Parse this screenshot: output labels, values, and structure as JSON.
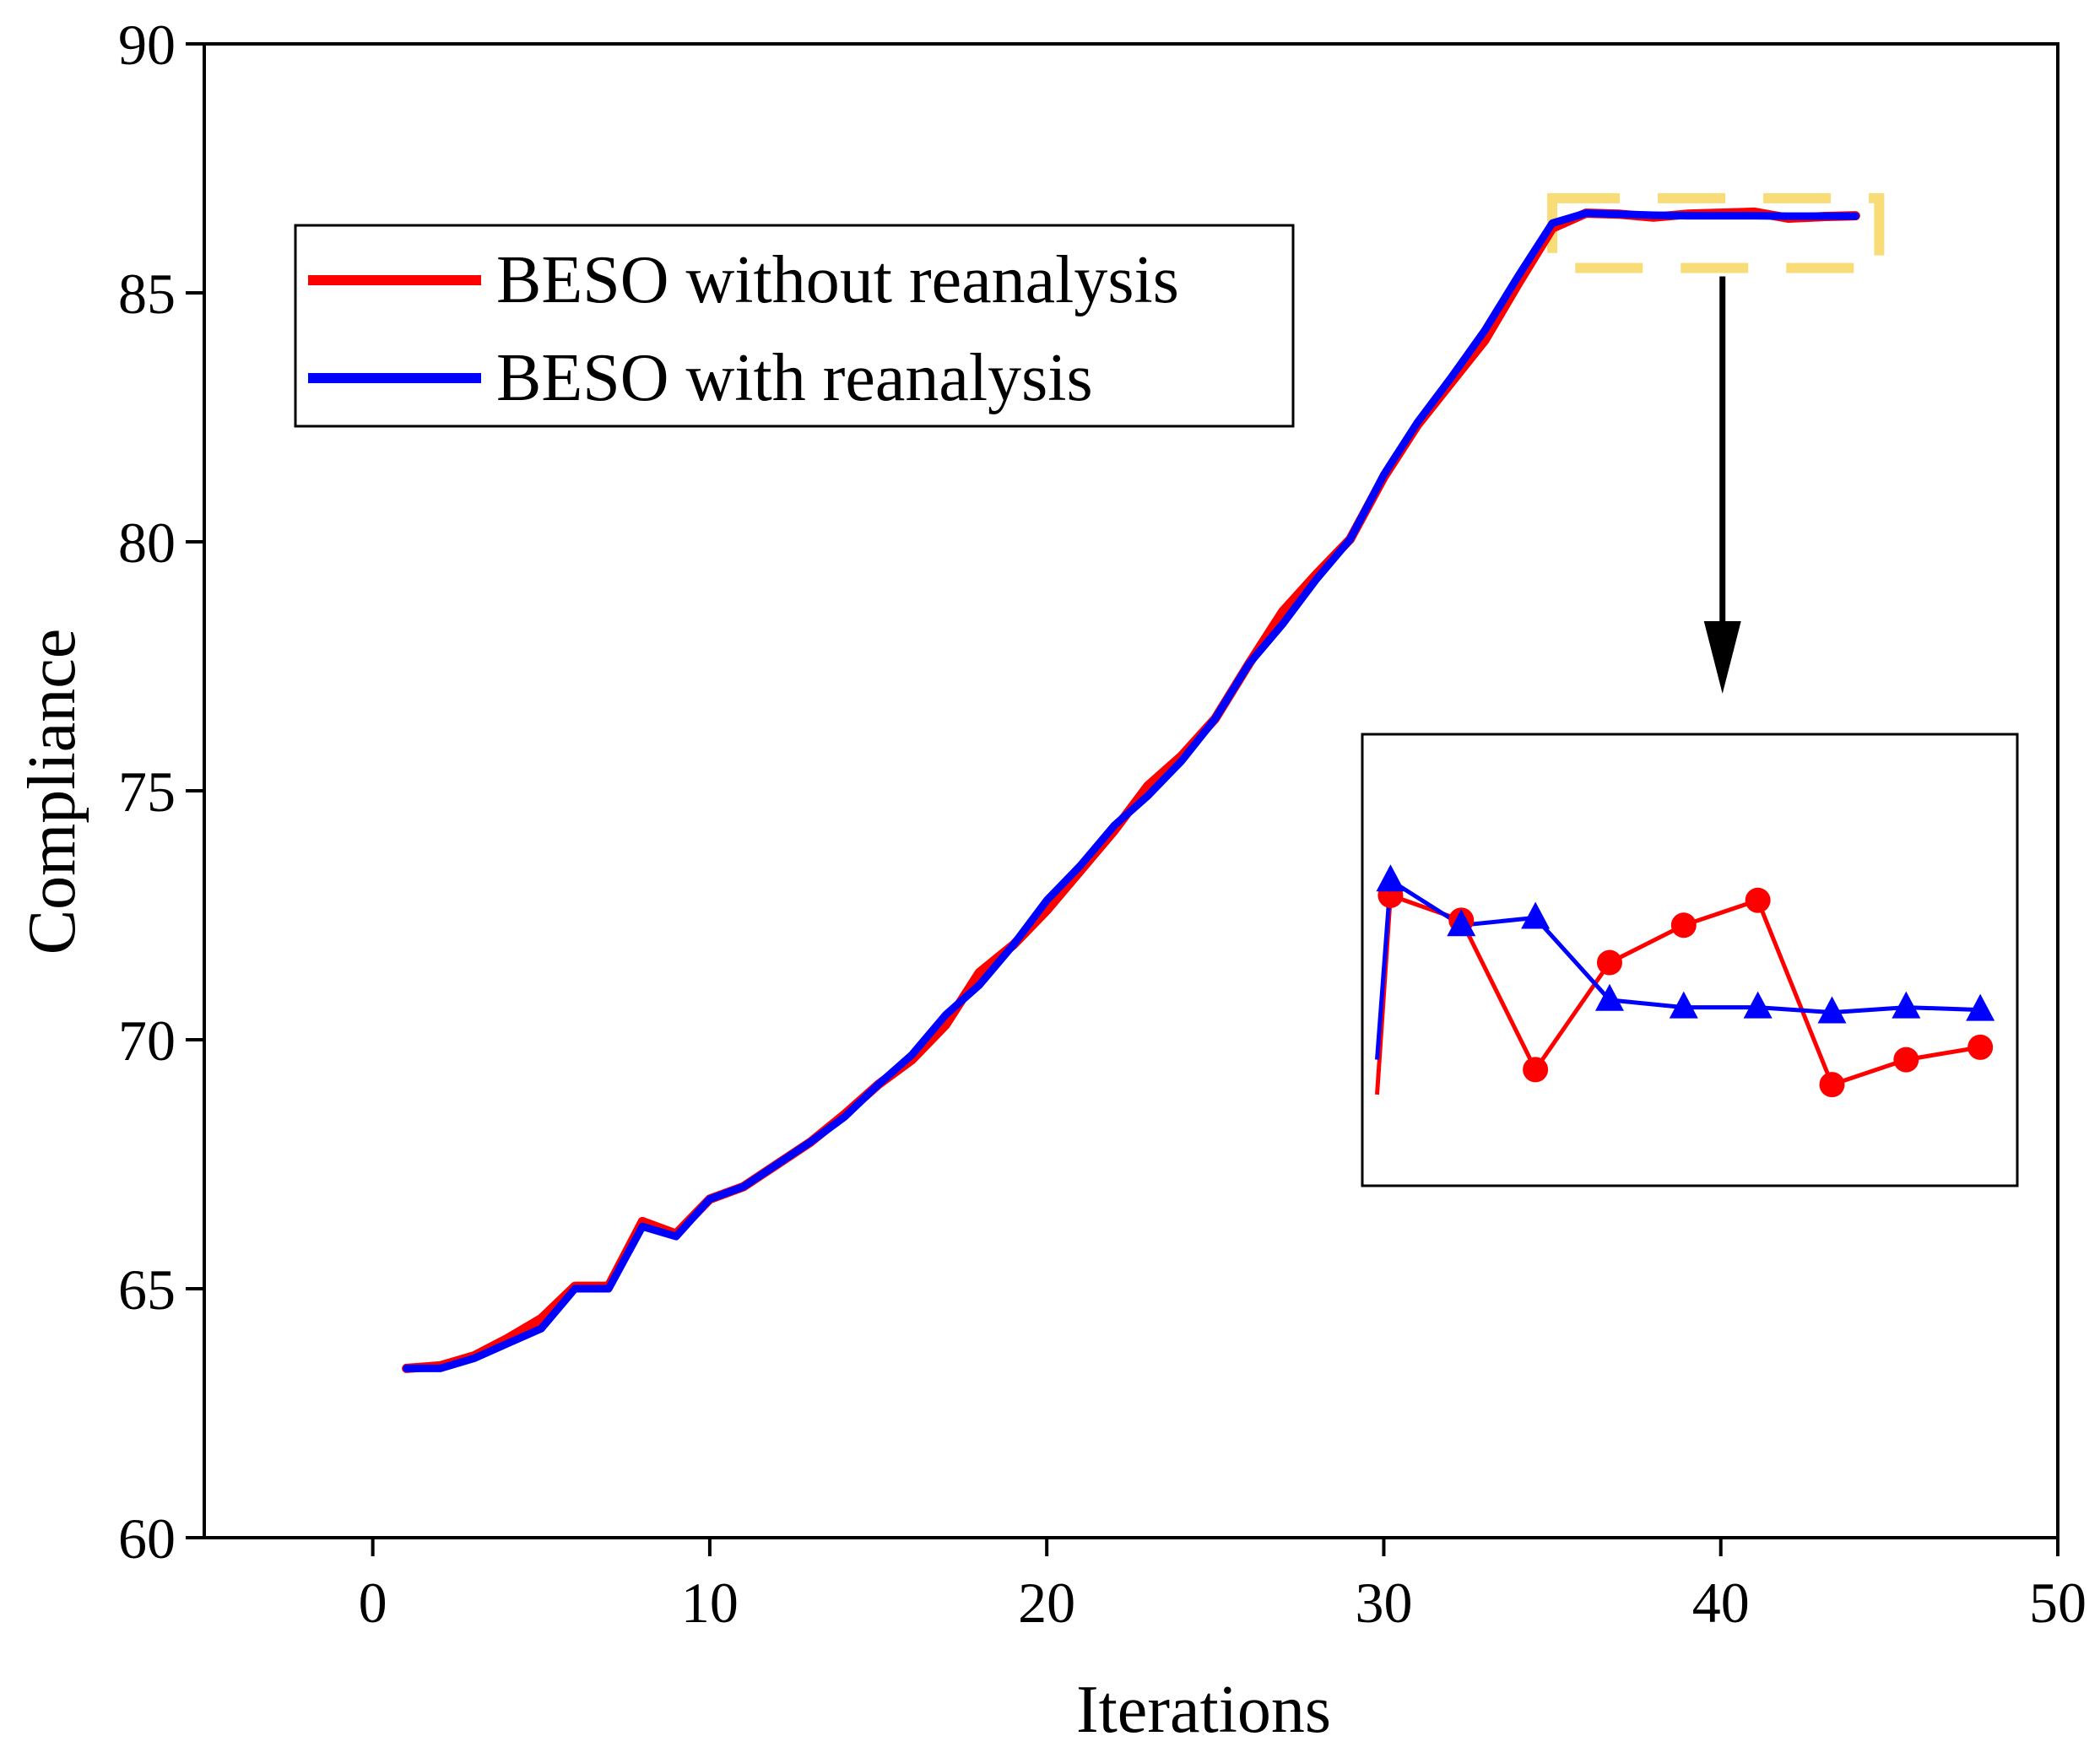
{
  "chart_data": {
    "type": "line",
    "title": "",
    "xlabel": "Iterations",
    "ylabel": "Compliance",
    "xlim": [
      -5,
      50
    ],
    "ylim": [
      60,
      90
    ],
    "xticks": [
      0,
      10,
      20,
      30,
      40,
      50
    ],
    "yticks": [
      60,
      65,
      70,
      75,
      80,
      85,
      90
    ],
    "grid": false,
    "legend_position": "upper-left",
    "series": [
      {
        "name": "BESO without reanalysis",
        "color": "#ff0000",
        "x": [
          1,
          2,
          3,
          4,
          5,
          6,
          7,
          8,
          9,
          10,
          11,
          12,
          13,
          14,
          15,
          16,
          17,
          18,
          19,
          20,
          21,
          22,
          23,
          24,
          25,
          26,
          27,
          28,
          29,
          30,
          31,
          32,
          33,
          34,
          35,
          36,
          37,
          38,
          39,
          40,
          41,
          42,
          43,
          44
        ],
        "y": [
          63.4,
          63.45,
          63.65,
          64.0,
          64.4,
          65.05,
          65.05,
          66.35,
          66.1,
          66.8,
          67.05,
          67.5,
          67.95,
          68.5,
          69.1,
          69.6,
          70.3,
          71.35,
          71.9,
          72.6,
          73.4,
          74.2,
          75.1,
          75.7,
          76.45,
          77.55,
          78.6,
          79.35,
          80.05,
          81.3,
          82.35,
          83.2,
          84.05,
          85.2,
          86.3,
          86.6,
          86.58,
          86.52,
          86.58,
          86.6,
          86.62,
          86.5,
          86.53,
          86.55
        ]
      },
      {
        "name": "BESO with reanalysis",
        "color": "#0000ff",
        "x": [
          1,
          2,
          3,
          4,
          5,
          6,
          7,
          8,
          9,
          10,
          11,
          12,
          13,
          14,
          15,
          16,
          17,
          18,
          19,
          20,
          21,
          22,
          23,
          24,
          25,
          26,
          27,
          28,
          29,
          30,
          31,
          32,
          33,
          34,
          35,
          36,
          37,
          38,
          39,
          40,
          41,
          42,
          43,
          44
        ],
        "y": [
          63.4,
          63.4,
          63.6,
          63.9,
          64.2,
          65.0,
          65.0,
          66.25,
          66.05,
          66.8,
          67.05,
          67.5,
          67.95,
          68.45,
          69.1,
          69.7,
          70.5,
          71.1,
          71.9,
          72.8,
          73.5,
          74.3,
          74.9,
          75.6,
          76.45,
          77.55,
          78.35,
          79.25,
          80.05,
          81.35,
          82.4,
          83.3,
          84.25,
          85.35,
          86.4,
          86.6,
          86.58,
          86.56,
          86.55,
          86.55,
          86.55,
          86.54,
          86.54,
          86.54
        ]
      }
    ],
    "zoom_region": {
      "x": [
        35,
        44.7
      ],
      "y": [
        85.5,
        86.9
      ]
    },
    "inset": {
      "red": [
        [
          29.8,
          68.9
        ],
        [
          30.2,
          72.9
        ],
        [
          32.3,
          72.4
        ],
        [
          34.5,
          69.4
        ],
        [
          36.7,
          71.55
        ],
        [
          38.9,
          72.3
        ],
        [
          41.1,
          72.8
        ],
        [
          43.3,
          69.1
        ],
        [
          45.5,
          69.6
        ],
        [
          47.7,
          69.85
        ]
      ],
      "blue": [
        [
          29.8,
          69.6
        ],
        [
          30.2,
          73.2
        ],
        [
          32.3,
          72.3
        ],
        [
          34.5,
          72.45
        ],
        [
          36.7,
          70.8
        ],
        [
          38.9,
          70.65
        ],
        [
          41.1,
          70.65
        ],
        [
          43.3,
          70.55
        ],
        [
          45.5,
          70.65
        ],
        [
          47.7,
          70.6
        ]
      ]
    }
  }
}
